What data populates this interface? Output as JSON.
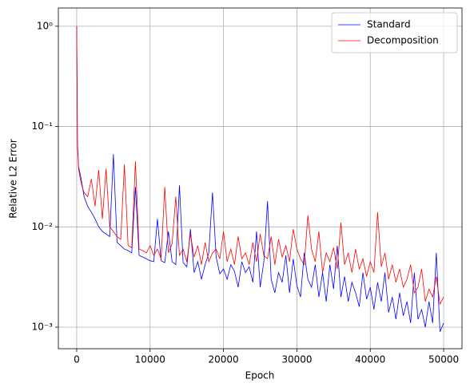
{
  "chart_data": {
    "type": "line",
    "xlabel": "Epoch",
    "ylabel": "Relative L2 Error",
    "yscale": "log",
    "grid": true,
    "legend": "upper right",
    "xlim": [
      -2500,
      52500
    ],
    "xticks": [
      0,
      10000,
      20000,
      30000,
      40000,
      50000
    ],
    "ylim": [
      0.00061,
      1.52
    ],
    "yticks": [
      {
        "value": 1,
        "label": "10⁰"
      },
      {
        "value": 0.1,
        "label": "10⁻¹"
      },
      {
        "value": 0.01,
        "label": "10⁻²"
      },
      {
        "value": 0.001,
        "label": "10⁻³"
      }
    ],
    "x": [
      0,
      100,
      250,
      500,
      750,
      1000,
      1500,
      2000,
      2500,
      3000,
      3500,
      4000,
      4500,
      5000,
      5500,
      6000,
      6500,
      7000,
      7500,
      8000,
      8500,
      9000,
      9500,
      10000,
      10500,
      11000,
      11500,
      12000,
      12500,
      13000,
      13500,
      14000,
      14500,
      15000,
      15500,
      16000,
      16500,
      17000,
      17500,
      18000,
      18500,
      19000,
      19500,
      20000,
      20500,
      21000,
      21500,
      22000,
      22500,
      23000,
      23500,
      24000,
      24500,
      25000,
      25500,
      26000,
      26500,
      27000,
      27500,
      28000,
      28500,
      29000,
      29500,
      30000,
      30500,
      31000,
      31500,
      32000,
      32500,
      33000,
      33500,
      34000,
      34500,
      35000,
      35500,
      36000,
      36500,
      37000,
      37500,
      38000,
      38500,
      39000,
      39500,
      40000,
      40500,
      41000,
      41500,
      42000,
      42500,
      43000,
      43500,
      44000,
      44500,
      45000,
      45500,
      46000,
      46500,
      47000,
      47500,
      48000,
      48500,
      49000,
      49500,
      50000
    ],
    "series": [
      {
        "name": "Standard",
        "color": "#0000ff",
        "values": [
          1.0,
          0.07,
          0.04,
          0.033,
          0.026,
          0.02,
          0.016,
          0.014,
          0.012,
          0.01,
          0.009,
          0.0085,
          0.008,
          0.053,
          0.007,
          0.0065,
          0.006,
          0.0058,
          0.0055,
          0.025,
          0.0052,
          0.005,
          0.0048,
          0.0046,
          0.0045,
          0.012,
          0.0046,
          0.0044,
          0.009,
          0.0045,
          0.0042,
          0.026,
          0.0044,
          0.004,
          0.0095,
          0.0035,
          0.0045,
          0.003,
          0.0042,
          0.0055,
          0.022,
          0.005,
          0.0034,
          0.0038,
          0.003,
          0.0042,
          0.0036,
          0.0025,
          0.0045,
          0.0035,
          0.004,
          0.0028,
          0.009,
          0.0025,
          0.0045,
          0.018,
          0.003,
          0.0022,
          0.0035,
          0.0028,
          0.0052,
          0.0022,
          0.0048,
          0.0026,
          0.002,
          0.0055,
          0.003,
          0.0025,
          0.0042,
          0.002,
          0.0035,
          0.0018,
          0.0042,
          0.0024,
          0.0065,
          0.002,
          0.0032,
          0.0018,
          0.0028,
          0.0022,
          0.0016,
          0.0035,
          0.0019,
          0.0025,
          0.0015,
          0.0028,
          0.0018,
          0.0035,
          0.0014,
          0.002,
          0.0012,
          0.0022,
          0.0013,
          0.0018,
          0.0011,
          0.0035,
          0.0012,
          0.0015,
          0.001,
          0.0018,
          0.0011,
          0.0055,
          0.0009,
          0.0011
        ]
      },
      {
        "name": "Decomposition",
        "color": "#ff0000",
        "values": [
          1.0,
          0.065,
          0.038,
          0.03,
          0.025,
          0.022,
          0.02,
          0.03,
          0.016,
          0.037,
          0.012,
          0.038,
          0.01,
          0.009,
          0.008,
          0.0075,
          0.042,
          0.0065,
          0.0062,
          0.045,
          0.006,
          0.0058,
          0.0055,
          0.0065,
          0.0052,
          0.006,
          0.0048,
          0.025,
          0.0055,
          0.0068,
          0.02,
          0.0052,
          0.006,
          0.0045,
          0.0085,
          0.005,
          0.0065,
          0.0042,
          0.007,
          0.0045,
          0.0055,
          0.006,
          0.0048,
          0.009,
          0.0045,
          0.006,
          0.0042,
          0.008,
          0.0048,
          0.0055,
          0.0042,
          0.007,
          0.0045,
          0.0085,
          0.0052,
          0.0048,
          0.008,
          0.0042,
          0.0075,
          0.005,
          0.0065,
          0.0045,
          0.0095,
          0.006,
          0.0048,
          0.0042,
          0.013,
          0.006,
          0.0045,
          0.009,
          0.0035,
          0.0055,
          0.0045,
          0.0062,
          0.0038,
          0.011,
          0.0042,
          0.0055,
          0.0035,
          0.006,
          0.0038,
          0.0048,
          0.0032,
          0.0045,
          0.0035,
          0.014,
          0.004,
          0.0055,
          0.003,
          0.0042,
          0.0028,
          0.0038,
          0.0025,
          0.003,
          0.0042,
          0.0022,
          0.0025,
          0.0038,
          0.0018,
          0.0024,
          0.002,
          0.0032,
          0.0017,
          0.002
        ]
      }
    ]
  }
}
